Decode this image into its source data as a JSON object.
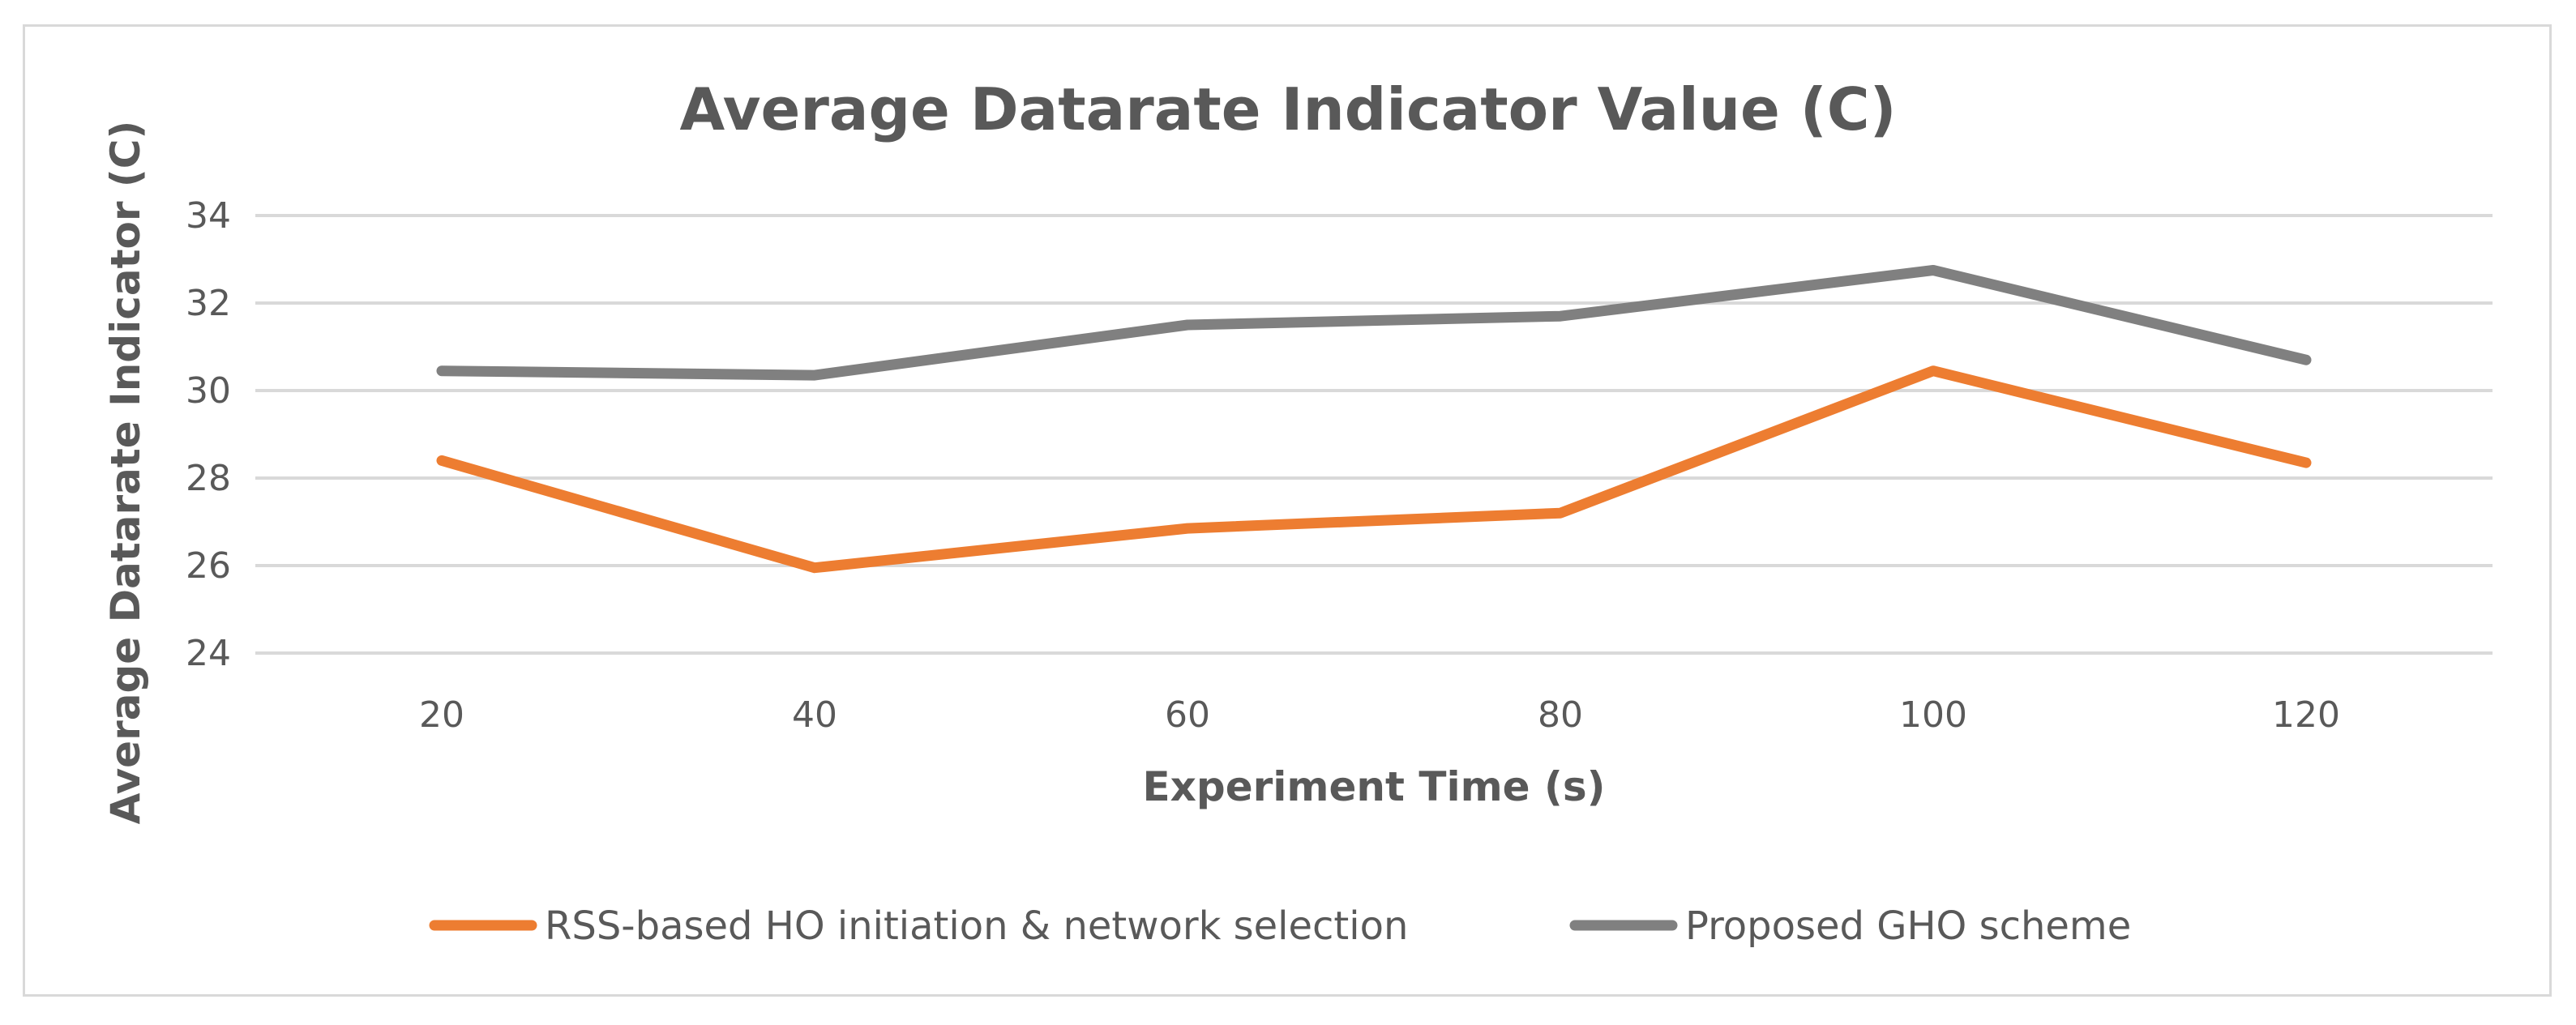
{
  "chart_data": {
    "type": "line",
    "title": "Average Datarate Indicator Value (C)",
    "xlabel": "Experiment Time (s)",
    "ylabel": "Average Datarate Indicator (C)",
    "x": [
      20,
      40,
      60,
      80,
      100,
      120
    ],
    "x_tick_labels": [
      "20",
      "40",
      "60",
      "80",
      "100",
      "120"
    ],
    "ylim": [
      24,
      34
    ],
    "y_ticks": [
      24,
      26,
      28,
      30,
      32,
      34
    ],
    "y_tick_labels": [
      "24",
      "26",
      "28",
      "30",
      "32",
      "34"
    ],
    "grid": true,
    "legend_position": "bottom",
    "series": [
      {
        "name": "RSS-based HO initiation & network selection",
        "color": "#ed7d31",
        "values": [
          28.4,
          25.95,
          26.85,
          27.2,
          30.45,
          28.35
        ]
      },
      {
        "name": "Proposed GHO scheme",
        "color": "#808080",
        "values": [
          30.45,
          30.35,
          31.5,
          31.7,
          32.75,
          30.7
        ]
      }
    ]
  }
}
